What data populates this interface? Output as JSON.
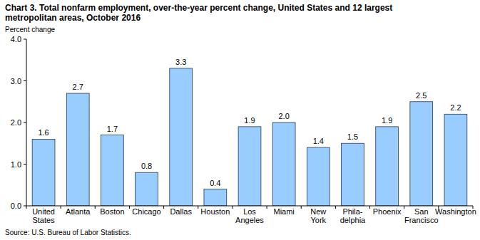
{
  "chart_data": {
    "type": "bar",
    "title": [
      "Chart 3. Total nonfarm employment, over-the-year percent change, United States and 12 largest",
      "metropolitan areas, October 2016"
    ],
    "y_label": "Percent change",
    "source": "Source: U.S. Bureau of Labor Statistics.",
    "categories": [
      "United\nStates",
      "Atlanta",
      "Boston",
      "Chicago",
      "Dallas",
      "Houston",
      "Los\nAngeles",
      "Miami",
      "New\nYork",
      "Phila-\ndelphia",
      "Phoenix",
      "San\nFrancisco",
      "Washington"
    ],
    "values": [
      1.6,
      2.7,
      1.7,
      0.8,
      3.3,
      0.4,
      1.9,
      2.0,
      1.4,
      1.5,
      1.9,
      2.5,
      2.2
    ],
    "value_labels": [
      "1.6",
      "2.7",
      "1.7",
      "0.8",
      "3.3",
      "0.4",
      "1.9",
      "2.0",
      "1.4",
      "1.5",
      "1.9",
      "2.5",
      "2.2"
    ],
    "color": "#99ccff",
    "ylim": [
      0,
      4
    ],
    "yticks": [
      {
        "value": 0,
        "label": "0.0"
      },
      {
        "value": 1,
        "label": "1.0"
      },
      {
        "value": 2,
        "label": "2.0"
      },
      {
        "value": 3,
        "label": "3.0"
      },
      {
        "value": 4,
        "label": "4.0"
      }
    ],
    "grid": false,
    "data_labels": true
  }
}
